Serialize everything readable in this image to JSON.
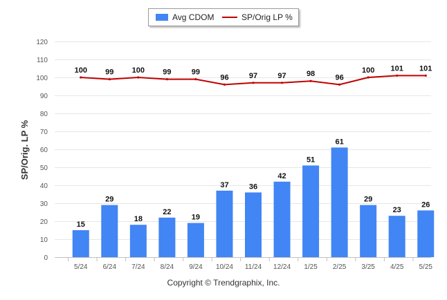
{
  "chart_data": {
    "type": "bar",
    "categories": [
      "5/24",
      "6/24",
      "7/24",
      "8/24",
      "9/24",
      "10/24",
      "11/24",
      "12/24",
      "1/25",
      "2/25",
      "3/25",
      "4/25",
      "5/25"
    ],
    "series": [
      {
        "name": "Avg CDOM",
        "kind": "bar",
        "color": "#4285f4",
        "values": [
          15,
          29,
          18,
          22,
          19,
          37,
          36,
          42,
          51,
          61,
          29,
          23,
          26
        ]
      },
      {
        "name": "SP/Orig LP %",
        "kind": "line",
        "color": "#c00000",
        "values": [
          100,
          99,
          100,
          99,
          99,
          96,
          97,
          97,
          98,
          96,
          100,
          101,
          101
        ]
      }
    ],
    "ylabel": "SP/Orig. LP %",
    "xlabel": "",
    "ylim": [
      0,
      120
    ],
    "yticks": [
      0,
      10,
      20,
      30,
      40,
      50,
      60,
      70,
      80,
      90,
      100,
      110,
      120
    ],
    "grid": true,
    "legend_position": "top-center"
  },
  "footer": {
    "copyright": "Copyright © Trendgraphix, Inc."
  }
}
